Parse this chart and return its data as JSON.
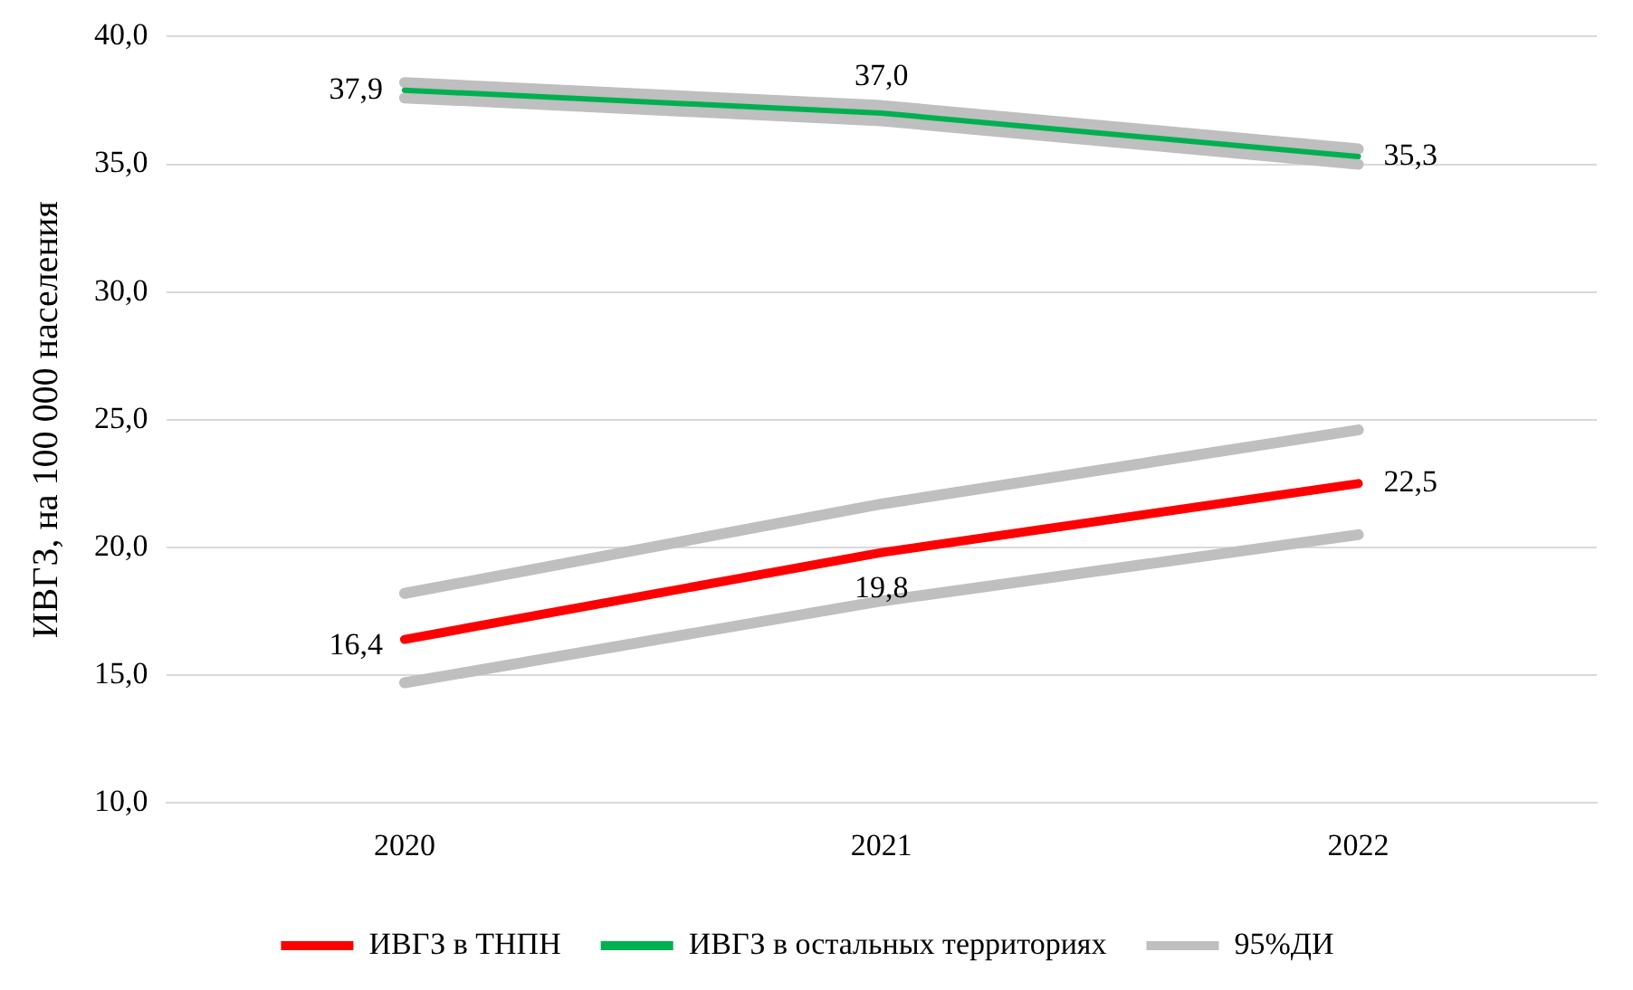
{
  "chart_data": {
    "type": "line",
    "ylabel": "ИВГЗ, на 100 000 населения",
    "categories": [
      "2020",
      "2021",
      "2022"
    ],
    "ylim": [
      10,
      40
    ],
    "yticks": [
      {
        "value": 10,
        "label": "10,0"
      },
      {
        "value": 15,
        "label": "15,0"
      },
      {
        "value": 20,
        "label": "20,0"
      },
      {
        "value": 25,
        "label": "25,0"
      },
      {
        "value": 30,
        "label": "30,0"
      },
      {
        "value": 35,
        "label": "35,0"
      },
      {
        "value": 40,
        "label": "40,0"
      }
    ],
    "grid": "y",
    "legend": "bottom",
    "marker": "none",
    "line_style": "solid",
    "series": [
      {
        "name": "ИВГЗ в ТНПН",
        "color": "#ff0000",
        "values": [
          16.4,
          19.8,
          22.5
        ],
        "value_labels": [
          "16,4",
          "19,8",
          "22,5"
        ]
      },
      {
        "name": "ИВГЗ в остальных территориях",
        "color": "#00b050",
        "values": [
          37.9,
          37.0,
          35.3
        ],
        "value_labels": [
          "37,9",
          "37,0",
          "35,3"
        ]
      },
      {
        "name": "95%ДИ",
        "color": "#bfbfbf",
        "values": [
          18.2,
          21.7,
          24.6
        ]
      },
      {
        "color": "#bfbfbf",
        "values": [
          14.7,
          17.9,
          20.5
        ]
      },
      {
        "color": "#bfbfbf",
        "values": [
          38.2,
          37.3,
          35.6
        ]
      },
      {
        "color": "#bfbfbf",
        "values": [
          37.6,
          36.7,
          35.0
        ]
      }
    ]
  }
}
